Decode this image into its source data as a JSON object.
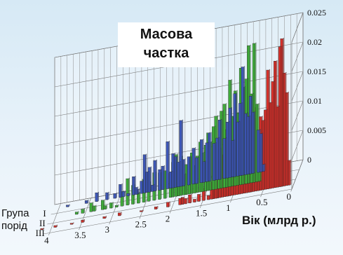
{
  "chart_data": {
    "type": "bar",
    "view": "3d",
    "title": [
      "Масова",
      "частка"
    ],
    "xlabel": "Вік (млрд р.)",
    "ylabel": [
      "Група",
      "порід"
    ],
    "zlabel": "",
    "x_ticks": [
      "0",
      "0.5",
      "1",
      "1.5",
      "2",
      "2.5",
      "3",
      "3.5",
      "4"
    ],
    "x_range": [
      0,
      4.1
    ],
    "group_ticks": [
      "I",
      "II",
      "III"
    ],
    "z_ticks": [
      "0",
      "0.005",
      "0.01",
      "0.015",
      "0.02",
      "0.025"
    ],
    "z_range": [
      0,
      0.025
    ],
    "grid": true,
    "series": [
      {
        "group": "I",
        "color": "#3d57b8",
        "x": [
          3.86,
          3.55,
          3.38,
          3.21,
          3.08,
          2.99,
          2.94,
          2.86,
          2.77,
          2.73,
          2.71,
          2.64,
          2.59,
          2.55,
          2.51,
          2.46,
          2.42,
          2.34,
          2.29,
          2.21,
          2.16,
          2.12,
          2.08,
          2.03,
          1.99,
          1.95,
          1.86,
          1.78,
          1.73,
          1.65,
          1.61,
          1.56,
          1.52,
          1.44,
          1.39,
          1.35,
          1.27,
          1.22,
          1.18,
          1.14,
          1.1,
          1.05,
          1.01,
          0.97,
          0.92,
          0.88,
          0.84,
          0.8,
          0.71,
          0.67,
          0.63
        ],
        "y": [
          0.0003,
          0.0005,
          0.0015,
          0.0012,
          0.0008,
          0.0022,
          0.0009,
          0.0004,
          0.0031,
          0.0012,
          0.0008,
          0.0021,
          0.0065,
          0.0035,
          0.0042,
          0.0011,
          0.0052,
          0.0035,
          0.004,
          0.008,
          0.0028,
          0.0058,
          0.0052,
          0.0042,
          0.0112,
          0.0045,
          0.0048,
          0.0061,
          0.0044,
          0.0073,
          0.0035,
          0.0066,
          0.0082,
          0.0063,
          0.0071,
          0.0101,
          0.0068,
          0.0095,
          0.0118,
          0.0062,
          0.0141,
          0.0092,
          0.0123,
          0.0184,
          0.0104,
          0.0098,
          0.0132,
          0.0104,
          0.0072,
          0.0065,
          0.0012
        ]
      },
      {
        "group": "II",
        "color": "#3fae3a",
        "x": [
          3.65,
          3.55,
          3.41,
          3.36,
          3.22,
          3.18,
          3.08,
          2.99,
          2.9,
          2.81,
          2.72,
          2.63,
          2.54,
          2.46,
          2.37,
          2.28,
          2.19,
          2.1,
          2.06,
          2.01,
          1.97,
          1.93,
          1.88,
          1.84,
          1.79,
          1.75,
          1.7,
          1.66,
          1.61,
          1.57,
          1.52,
          1.48,
          1.44,
          1.39,
          1.35,
          1.3,
          1.26,
          1.21,
          1.17,
          1.12,
          1.08,
          1.03,
          0.99,
          0.94,
          0.9,
          0.85,
          0.81,
          0.76,
          0.72,
          0.67,
          0.63
        ],
        "y": [
          0.0004,
          0.0007,
          0.0015,
          0.0009,
          0.0016,
          0.0006,
          0.0009,
          0.0003,
          0.0025,
          0.0045,
          0.0032,
          0.0018,
          0.0039,
          0.0032,
          0.0047,
          0.0045,
          0.0047,
          0.0041,
          0.0059,
          0.0071,
          0.0048,
          0.0066,
          0.0035,
          0.0051,
          0.0062,
          0.0069,
          0.0047,
          0.0062,
          0.0085,
          0.0066,
          0.0078,
          0.0098,
          0.0082,
          0.0107,
          0.0124,
          0.0068,
          0.0131,
          0.0142,
          0.0098,
          0.0181,
          0.0119,
          0.0161,
          0.0123,
          0.0198,
          0.0165,
          0.0178,
          0.0234,
          0.0151,
          0.0236,
          0.0132,
          0.0058
        ]
      },
      {
        "group": "III",
        "color": "#d6302a",
        "x": [
          4.16,
          3.94,
          3.67,
          3.49,
          3.13,
          2.88,
          2.52,
          2.28,
          2.08,
          1.88,
          1.84,
          1.79,
          1.72,
          1.64,
          1.57,
          1.49,
          1.41,
          1.36,
          1.33,
          1.29,
          1.26,
          1.22,
          1.18,
          1.14,
          1.1,
          1.06,
          1.02,
          0.98,
          0.94,
          0.9,
          0.86,
          0.82,
          0.78,
          0.74,
          0.71,
          0.67,
          0.63,
          0.59,
          0.55,
          0.51,
          0.47,
          0.43,
          0.39,
          0.35,
          0.31,
          0.27,
          0.23,
          0.2,
          0.16,
          0.12,
          0.08
        ],
        "y": [
          0.0002,
          0.0003,
          0.0002,
          0.0004,
          0.0003,
          0.0005,
          0.0002,
          0.0004,
          0.0008,
          0.0011,
          0.0012,
          0.0009,
          0.0014,
          0.0005,
          0.0012,
          0.0021,
          0.0007,
          0.0029,
          0.0016,
          0.0038,
          0.0052,
          0.0048,
          0.0072,
          0.0086,
          0.0034,
          0.0094,
          0.0076,
          0.0092,
          0.0121,
          0.0085,
          0.0116,
          0.0102,
          0.0138,
          0.0126,
          0.0074,
          0.0123,
          0.0142,
          0.0065,
          0.0125,
          0.0118,
          0.0135,
          0.0202,
          0.0146,
          0.0181,
          0.0215,
          0.0137,
          0.0238,
          0.0251,
          0.0192,
          0.0158,
          0.0042
        ]
      }
    ]
  }
}
